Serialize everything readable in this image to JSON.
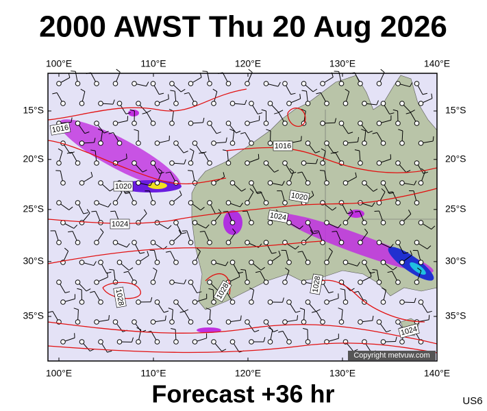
{
  "title": "2000 AWST Thu 20 Aug 2026",
  "longitude_ticks": [
    {
      "value": 100,
      "label": "100°E"
    },
    {
      "value": 110,
      "label": "110°E"
    },
    {
      "value": 120,
      "label": "120°E"
    },
    {
      "value": 130,
      "label": "130°E"
    },
    {
      "value": 140,
      "label": "140°E"
    }
  ],
  "latitude_ticks": [
    {
      "value": 15,
      "label": "15°S"
    },
    {
      "value": 20,
      "label": "20°S"
    },
    {
      "value": 25,
      "label": "25°S"
    },
    {
      "value": 30,
      "label": "30°S"
    },
    {
      "value": 35,
      "label": "35°S"
    }
  ],
  "isobar_labels": [
    1016,
    1020,
    1024,
    1016,
    1020,
    1024,
    1028,
    1028,
    1028,
    1024
  ],
  "copyright": "Copyright metvuw.com",
  "footer": "Forecast +36 hr",
  "region_code": "US6"
}
